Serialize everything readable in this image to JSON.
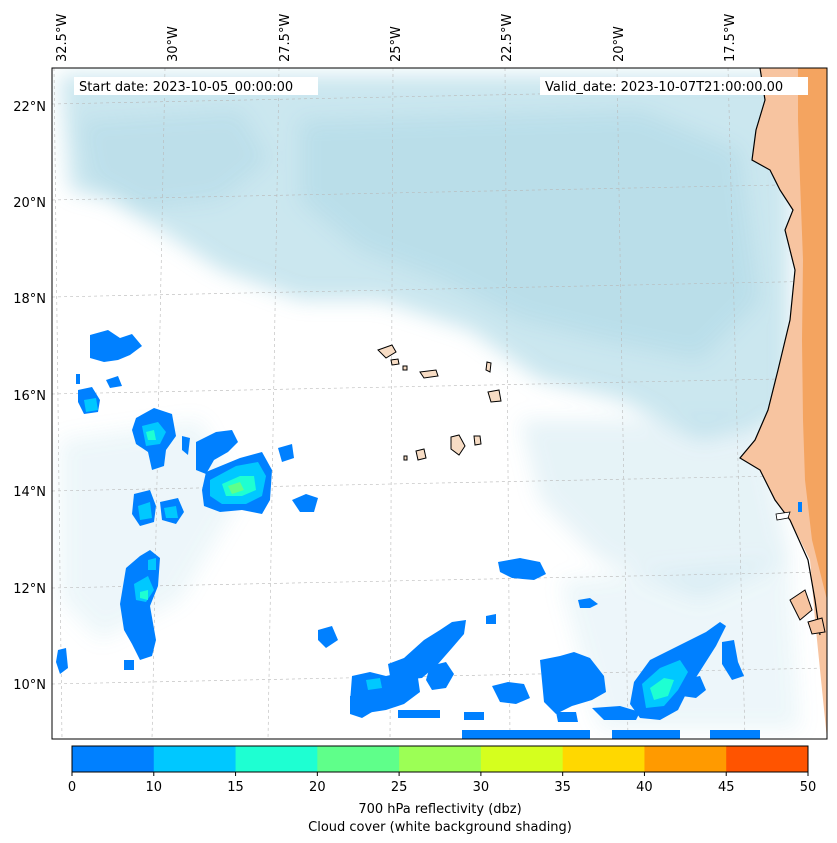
{
  "header": {
    "start_label": "Start date: 2023-10-05_00:00:00",
    "valid_label": "Valid_date: 2023-10-07T21:00:00.00"
  },
  "map": {
    "lon_labels": [
      "32.5°W",
      "30°W",
      "27.5°W",
      "25°W",
      "22.5°W",
      "20°W",
      "17.5°W"
    ],
    "lat_labels": [
      "22°N",
      "20°N",
      "18°N",
      "16°N",
      "14°N",
      "12°N",
      "10°N"
    ],
    "colors": {
      "cloud": "#acd8e6",
      "land_west_africa": "#f4a460",
      "coastline": "#000000",
      "gridline": "#b0b0b0"
    }
  },
  "colorbar": {
    "ticks": [
      "0",
      "10",
      "15",
      "20",
      "25",
      "30",
      "35",
      "40",
      "45",
      "50"
    ],
    "colors": [
      "#0080ff",
      "#00c8ff",
      "#1effd2",
      "#5fff8a",
      "#9cff55",
      "#d5ff1e",
      "#ffd800",
      "#ff9a00",
      "#ff5400"
    ],
    "label_line1": "700 hPa reflectivity (dbz)",
    "label_line2": "Cloud cover (white background shading)"
  }
}
